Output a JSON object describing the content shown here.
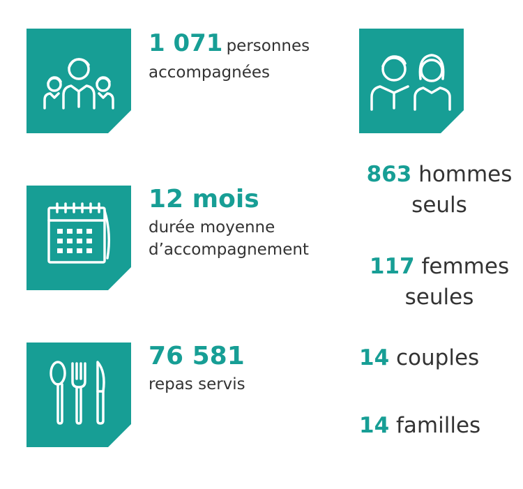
{
  "colors": {
    "accent": "#179e95",
    "text": "#333333"
  },
  "stats": [
    {
      "value": "1 071",
      "label": "personnes",
      "label2": "accompagnées",
      "icon": "family-group-icon"
    },
    {
      "value": "12 mois",
      "label": "durée moyenne",
      "label2": "d’accompagnement",
      "icon": "calendar-icon"
    },
    {
      "value": "76 581",
      "label": "repas servis",
      "icon": "cutlery-icon"
    }
  ],
  "breakdown_icon": "man-woman-icon",
  "breakdown": [
    {
      "value": "863",
      "label": "hommes",
      "label2": "seuls"
    },
    {
      "value": "117",
      "label": "femmes",
      "label2": "seules"
    },
    {
      "value": "14",
      "label": "couples"
    },
    {
      "value": "14",
      "label": "familles"
    }
  ]
}
